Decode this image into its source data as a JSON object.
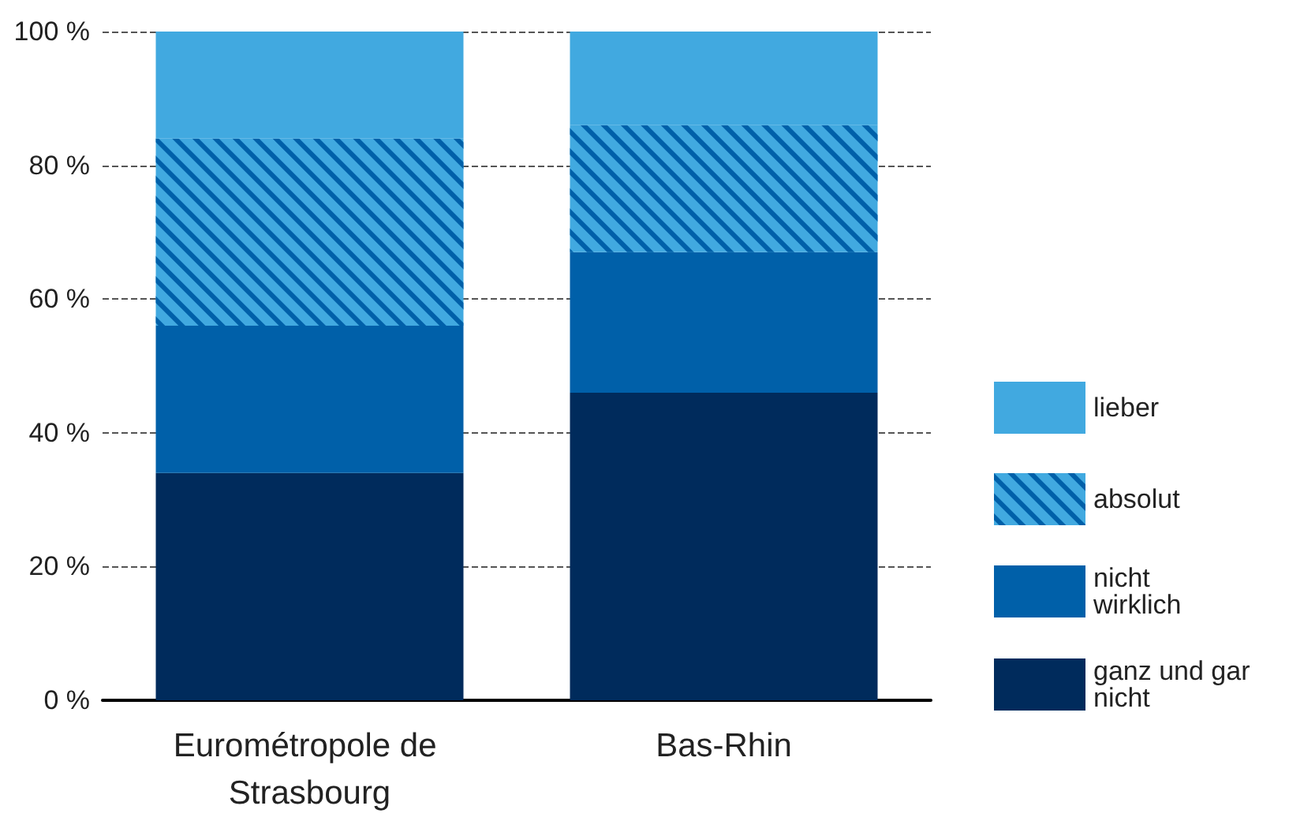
{
  "chart_data": {
    "type": "bar",
    "stacked": true,
    "categories": [
      "Eurométropole de Strasbourg",
      "Bas-Rhin"
    ],
    "series": [
      {
        "name": "ganz und gar nicht",
        "color": "#002b5c",
        "values": [
          34,
          46
        ]
      },
      {
        "name": "nicht wirklich",
        "color": "#0060a9",
        "values": [
          22,
          21
        ]
      },
      {
        "name": "absolut",
        "color": "#41a9e0",
        "values": [
          28,
          19
        ]
      },
      {
        "name": "lieber",
        "color": "#41a9e0",
        "values": [
          16,
          14
        ]
      }
    ],
    "ylim": [
      0,
      100
    ],
    "yticks": [
      {
        "value": 0,
        "label": "0 %"
      },
      {
        "value": 20,
        "label": "20 %"
      },
      {
        "value": 40,
        "label": "40 %"
      },
      {
        "value": 60,
        "label": "60 %"
      },
      {
        "value": 80,
        "label": "80 %"
      },
      {
        "value": 100,
        "label": "100 %"
      }
    ],
    "grid": "y",
    "legend": "right"
  }
}
